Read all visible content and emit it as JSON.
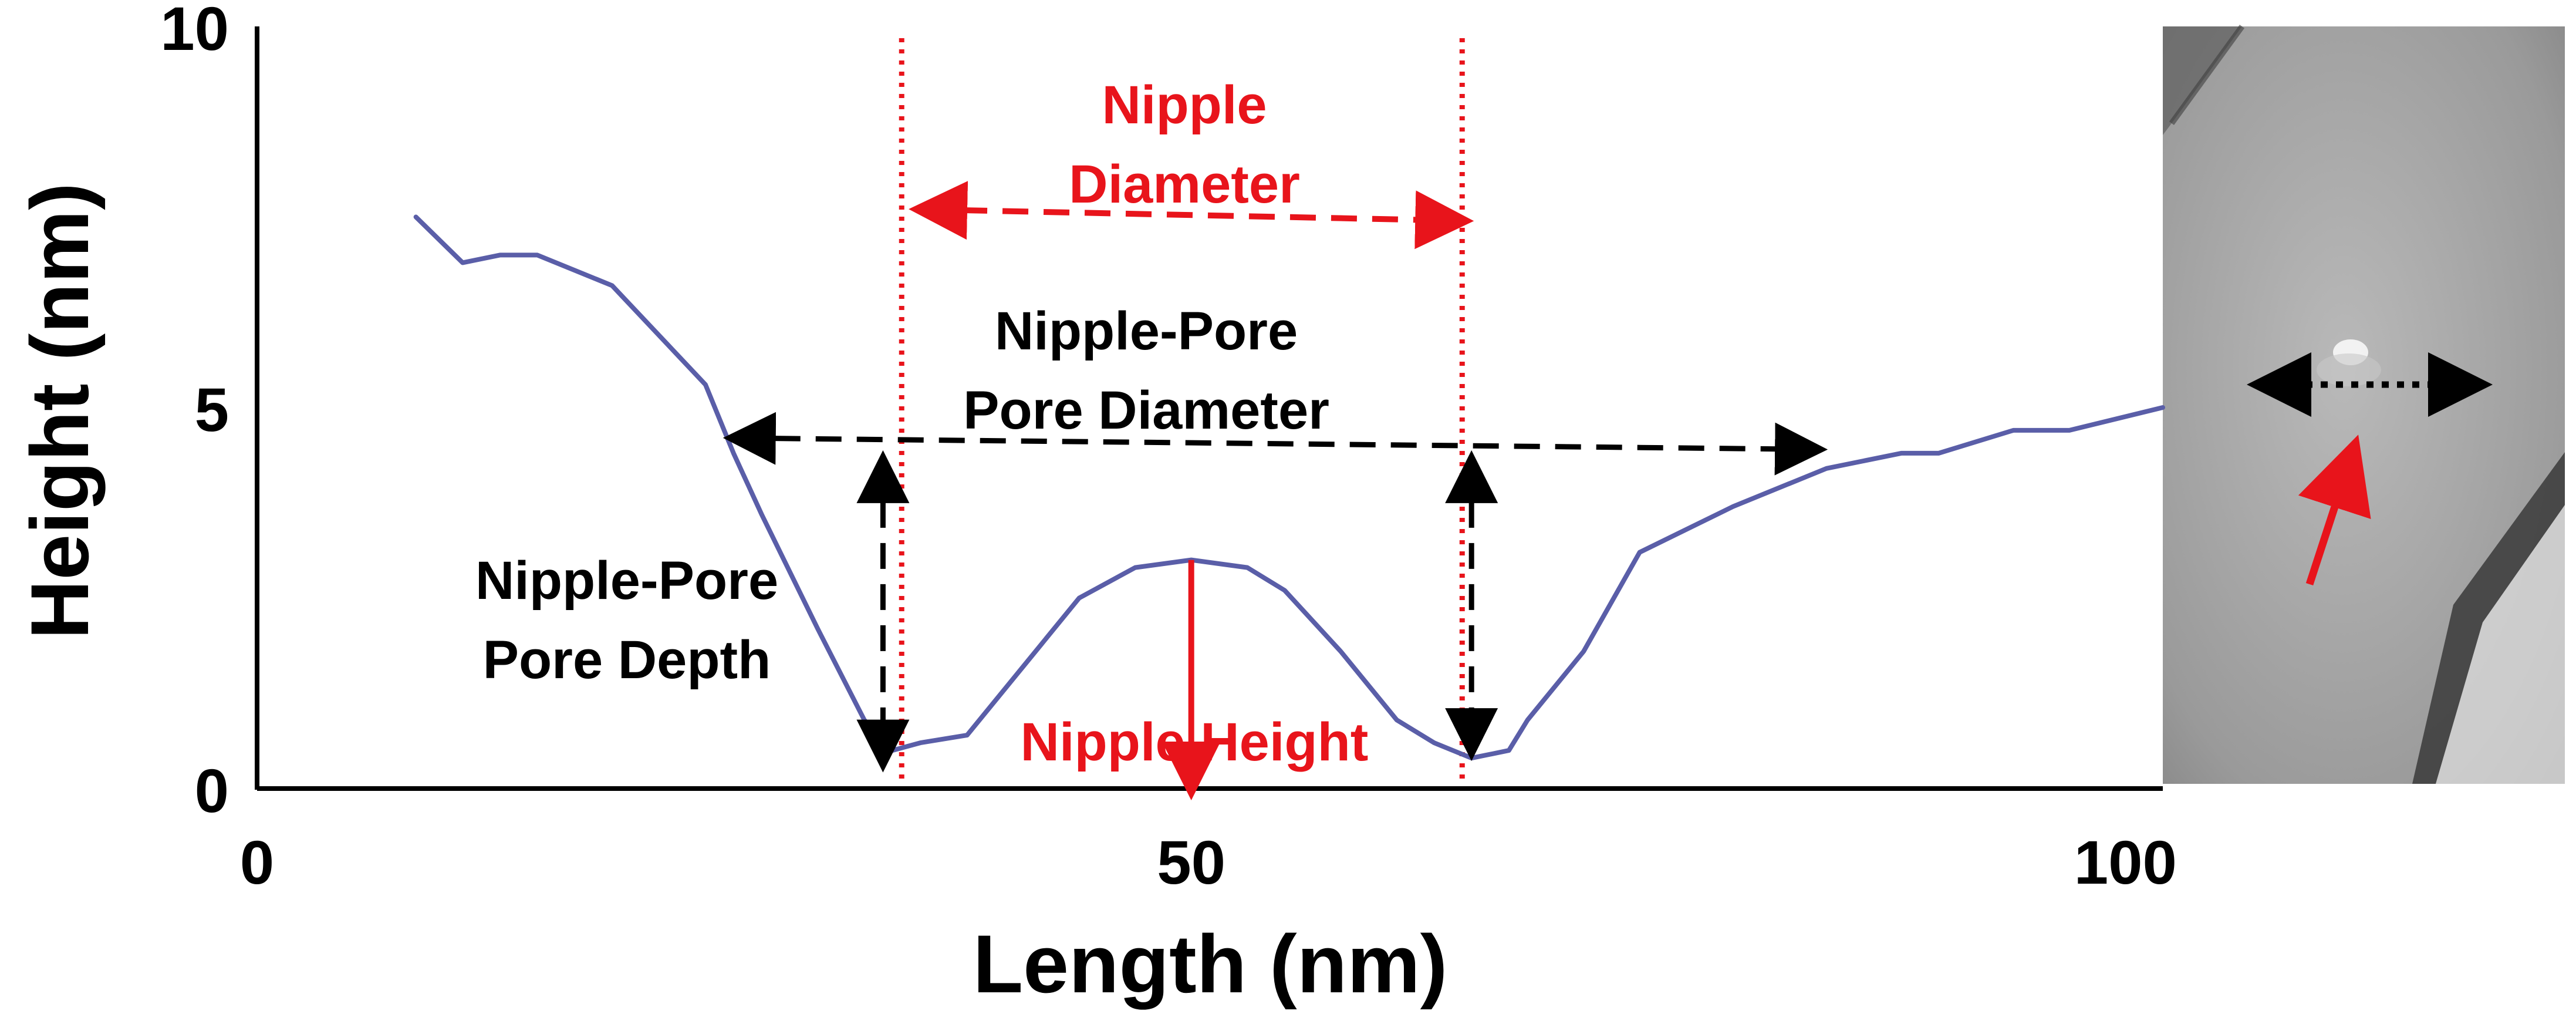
{
  "chart_data": {
    "type": "line",
    "xlabel": "Length (nm)",
    "ylabel": "Height (nm)",
    "xlim": [
      0,
      102
    ],
    "ylim": [
      0,
      10
    ],
    "xticks": [
      "0",
      "50",
      "100"
    ],
    "yticks": [
      "0",
      "5",
      "10"
    ],
    "grid": false,
    "legend": "none",
    "series": [
      {
        "color": "#5a5ea8",
        "x": [
          8.5,
          11,
          13,
          15,
          19,
          24,
          25.5,
          27,
          30,
          32.5,
          34,
          35.5,
          38,
          41,
          44,
          47,
          50,
          53,
          55,
          58,
          61,
          63,
          65,
          67,
          68,
          71,
          74,
          79,
          84,
          88,
          90,
          94,
          97,
          102
        ],
        "y": [
          7.5,
          6.9,
          7.0,
          7.0,
          6.6,
          5.3,
          4.4,
          3.6,
          2.1,
          0.9,
          0.5,
          0.6,
          0.7,
          1.6,
          2.5,
          2.9,
          3.0,
          2.9,
          2.6,
          1.8,
          0.9,
          0.6,
          0.4,
          0.5,
          0.9,
          1.8,
          3.1,
          3.7,
          4.2,
          4.4,
          4.4,
          4.7,
          4.7,
          5.0
        ]
      }
    ],
    "annotations": [
      {
        "text": [
          "Nipple",
          "Diameter"
        ],
        "color": "#e8141b",
        "from": [
          35.5,
          7.6
        ],
        "to": [
          64.5,
          7.45
        ]
      },
      {
        "text": [
          "Nipple-Pore",
          "Pore Diameter"
        ],
        "color": "#000000",
        "from": [
          25.5,
          4.6
        ],
        "to": [
          83.5,
          4.45
        ]
      },
      {
        "text": [
          "Nipple-Pore",
          "Pore Depth"
        ],
        "color": "#000000",
        "from": [
          33.5,
          4.3
        ],
        "to": [
          33.5,
          0.35
        ]
      },
      {
        "text": [
          "Nipple Height"
        ],
        "color": "#e8141b",
        "from": [
          50,
          3.0
        ],
        "to": [
          50,
          0
        ]
      },
      {
        "text": [],
        "color": "#000000",
        "from": [
          65,
          4.3
        ],
        "to": [
          65,
          0.5
        ]
      }
    ],
    "guide_lines": {
      "x": [
        34.5,
        64.5
      ],
      "color": "#e8141b",
      "style": "dotted"
    },
    "inset": {
      "kind": "grayscale micrograph",
      "marker_arrow_color": "#000000",
      "pointer_arrow_color": "#e8141b"
    }
  }
}
